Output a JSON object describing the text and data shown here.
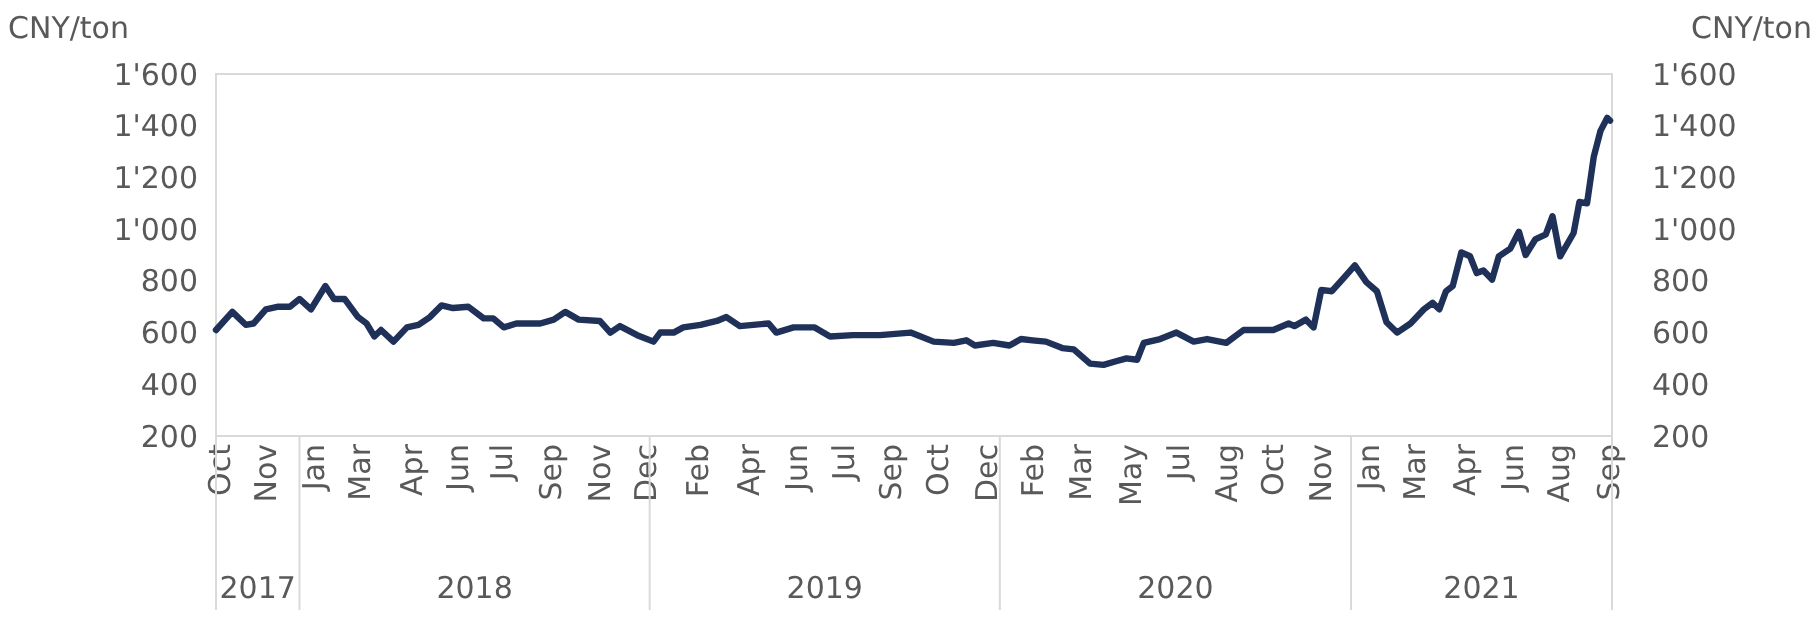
{
  "chart_data": {
    "type": "line",
    "ylabel": "CNY/ton",
    "y2label": "CNY/ton",
    "x": [
      "2017-10-06",
      "2017-10-23",
      "2017-11-06",
      "2017-11-14",
      "2017-11-27",
      "2017-12-10",
      "2017-12-22",
      "2018-01-01",
      "2018-01-13",
      "2018-01-28",
      "2018-02-06",
      "2018-02-17",
      "2018-03-03",
      "2018-03-12",
      "2018-03-20",
      "2018-03-27",
      "2018-04-09",
      "2018-04-23",
      "2018-05-05",
      "2018-05-17",
      "2018-05-29",
      "2018-06-10",
      "2018-06-26",
      "2018-07-12",
      "2018-07-22",
      "2018-08-02",
      "2018-08-15",
      "2018-09-09",
      "2018-09-23",
      "2018-10-05",
      "2018-10-19",
      "2018-11-10",
      "2018-11-21",
      "2018-12-01",
      "2018-12-19",
      "2019-01-05",
      "2019-01-12",
      "2019-01-26",
      "2019-02-05",
      "2019-02-23",
      "2019-03-12",
      "2019-03-22",
      "2019-04-05",
      "2019-04-19",
      "2019-05-05",
      "2019-05-13",
      "2019-05-31",
      "2019-06-22",
      "2019-07-08",
      "2019-08-01",
      "2019-08-29",
      "2019-09-30",
      "2019-10-24",
      "2019-11-14",
      "2019-11-27",
      "2019-12-06",
      "2019-12-25",
      "2020-01-11",
      "2020-01-23",
      "2020-02-04",
      "2020-02-18",
      "2020-03-06",
      "2020-03-18",
      "2020-04-04",
      "2020-04-18",
      "2020-05-02",
      "2020-05-12",
      "2020-05-23",
      "2020-05-30",
      "2020-06-16",
      "2020-07-03",
      "2020-07-21",
      "2020-08-04",
      "2020-08-24",
      "2020-09-11",
      "2020-10-12",
      "2020-10-28",
      "2020-11-03",
      "2020-11-15",
      "2020-11-23",
      "2020-12-01",
      "2020-12-12",
      "2020-12-24",
      "2021-01-05",
      "2021-01-17",
      "2021-01-28",
      "2021-02-07",
      "2021-02-18",
      "2021-03-04",
      "2021-03-18",
      "2021-03-27",
      "2021-04-03",
      "2021-04-10",
      "2021-04-17",
      "2021-04-26",
      "2021-05-05",
      "2021-05-12",
      "2021-05-19",
      "2021-05-28",
      "2021-06-04",
      "2021-06-16",
      "2021-06-25",
      "2021-07-02",
      "2021-07-12",
      "2021-07-23",
      "2021-07-30",
      "2021-08-07",
      "2021-08-21",
      "2021-08-27",
      "2021-09-04",
      "2021-09-11",
      "2021-09-18",
      "2021-09-25",
      "2021-09-28"
    ],
    "series": [
      {
        "color": "#1f3158",
        "values": [
          610,
          680,
          630,
          635,
          690,
          700,
          700,
          730,
          690,
          780,
          730,
          730,
          660,
          635,
          585,
          610,
          565,
          620,
          630,
          660,
          705,
          695,
          700,
          655,
          655,
          620,
          635,
          635,
          650,
          680,
          650,
          645,
          600,
          625,
          590,
          565,
          600,
          600,
          620,
          630,
          645,
          660,
          625,
          630,
          635,
          600,
          620,
          620,
          585,
          590,
          590,
          600,
          565,
          560,
          570,
          550,
          560,
          550,
          575,
          570,
          565,
          540,
          535,
          480,
          475,
          490,
          500,
          495,
          560,
          575,
          600,
          565,
          575,
          560,
          610,
          610,
          635,
          625,
          650,
          620,
          765,
          760,
          810,
          860,
          795,
          760,
          640,
          600,
          635,
          690,
          715,
          690,
          760,
          780,
          910,
          895,
          830,
          840,
          805,
          895,
          925,
          990,
          900,
          960,
          980,
          1050,
          895,
          985,
          1105,
          1100,
          1280,
          1380,
          1430,
          1420
        ]
      }
    ],
    "xlim": [
      "2017-10-06",
      "2021-09-30"
    ],
    "xticks": [
      {
        "value": "2017-10-10",
        "label": "Oct"
      },
      {
        "value": "2017-11-27",
        "label": "Nov"
      },
      {
        "value": "2018-01-16",
        "label": "Jan"
      },
      {
        "value": "2018-03-05",
        "label": "Mar"
      },
      {
        "value": "2018-04-28",
        "label": "Apr"
      },
      {
        "value": "2018-06-15",
        "label": "Jun"
      },
      {
        "value": "2018-07-31",
        "label": "Jul"
      },
      {
        "value": "2018-09-20",
        "label": "Sep"
      },
      {
        "value": "2018-11-10",
        "label": "Nov"
      },
      {
        "value": "2018-12-28",
        "label": "Dec"
      },
      {
        "value": "2019-02-20",
        "label": "Feb"
      },
      {
        "value": "2019-04-14",
        "label": "Apr"
      },
      {
        "value": "2019-06-03",
        "label": "Jun"
      },
      {
        "value": "2019-07-22",
        "label": "Jul"
      },
      {
        "value": "2019-09-09",
        "label": "Sep"
      },
      {
        "value": "2019-10-28",
        "label": "Oct"
      },
      {
        "value": "2019-12-18",
        "label": "Dec"
      },
      {
        "value": "2020-02-04",
        "label": "Feb"
      },
      {
        "value": "2020-03-25",
        "label": "Mar"
      },
      {
        "value": "2020-05-16",
        "label": "May"
      },
      {
        "value": "2020-07-05",
        "label": "Jul"
      },
      {
        "value": "2020-08-24",
        "label": "Aug"
      },
      {
        "value": "2020-10-11",
        "label": "Oct"
      },
      {
        "value": "2020-11-30",
        "label": "Nov"
      },
      {
        "value": "2021-01-19",
        "label": "Jan"
      },
      {
        "value": "2021-03-08",
        "label": "Mar"
      },
      {
        "value": "2021-04-29",
        "label": "Apr"
      },
      {
        "value": "2021-06-18",
        "label": "Jun"
      },
      {
        "value": "2021-08-05",
        "label": "Aug"
      },
      {
        "value": "2021-09-26",
        "label": "Sep"
      }
    ],
    "ylim": [
      200,
      1600
    ],
    "yticks": [
      200,
      400,
      600,
      800,
      {
        "value": 1000,
        "label": "1'000"
      },
      {
        "value": 1200,
        "label": "1'200"
      },
      {
        "value": 1400,
        "label": "1'400"
      },
      {
        "value": 1600,
        "label": "1'600"
      }
    ],
    "y2lim": [
      200,
      1600
    ],
    "y2ticks": [
      200,
      400,
      600,
      800,
      {
        "value": 1000,
        "label": "1'000"
      },
      {
        "value": 1200,
        "label": "1'200"
      },
      {
        "value": 1400,
        "label": "1'400"
      },
      {
        "value": 1600,
        "label": "1'600"
      }
    ],
    "annotations": [
      "2017",
      "2018",
      "2019",
      "2020",
      "2021"
    ],
    "grid": false,
    "marker": "none",
    "line_style": "solid"
  }
}
